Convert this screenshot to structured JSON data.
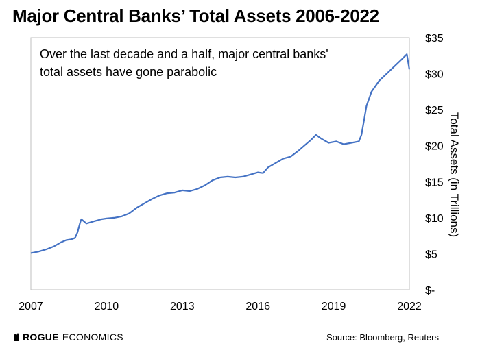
{
  "header": {
    "title": "Major Central Banks’ Total Assets 2006-2022"
  },
  "annotation": {
    "line1": "Over the last decade and a half, major central banks'",
    "line2": "total assets have gone parabolic"
  },
  "footer": {
    "logo_brand": "ROGUE",
    "logo_brand2": "ECONOMICS",
    "source": "Source: Bloomberg, Reuters"
  },
  "chart_data": {
    "type": "line",
    "title": "Major Central Banks’ Total Assets 2006-2022",
    "ylabel": "Total Assets (in Trillions)",
    "xlabel": "",
    "xlim": [
      2007,
      2022
    ],
    "ylim": [
      0,
      35
    ],
    "x_ticks": [
      "2007",
      "2010",
      "2013",
      "2016",
      "2019",
      "2022"
    ],
    "x_tick_values": [
      2007,
      2010,
      2013,
      2016,
      2019,
      2022
    ],
    "y_ticks": [
      "$-",
      "$5",
      "$10",
      "$15",
      "$20",
      "$25",
      "$30",
      "$35"
    ],
    "y_tick_values": [
      0,
      5,
      10,
      15,
      20,
      25,
      30,
      35
    ],
    "grid": false,
    "legend": "none",
    "colors": {
      "line": "#4472C4",
      "frame": "#bfbfbf"
    },
    "series": [
      {
        "x": [
          2007.0,
          2007.3,
          2007.6,
          2007.9,
          2008.2,
          2008.4,
          2008.6,
          2008.75,
          2008.85,
          2008.95,
          2009.0,
          2009.1,
          2009.2,
          2009.5,
          2009.8,
          2010.0,
          2010.3,
          2010.6,
          2010.9,
          2011.2,
          2011.5,
          2011.8,
          2012.1,
          2012.4,
          2012.7,
          2013.0,
          2013.3,
          2013.6,
          2013.9,
          2014.2,
          2014.5,
          2014.8,
          2015.1,
          2015.4,
          2015.7,
          2016.0,
          2016.2,
          2016.4,
          2016.7,
          2017.0,
          2017.3,
          2017.6,
          2017.9,
          2018.1,
          2018.3,
          2018.5,
          2018.8,
          2019.1,
          2019.4,
          2019.7,
          2020.0,
          2020.1,
          2020.2,
          2020.3,
          2020.5,
          2020.8,
          2021.1,
          2021.4,
          2021.7,
          2021.9,
          2022.0
        ],
        "y": [
          5.1,
          5.3,
          5.6,
          6.0,
          6.6,
          6.9,
          7.0,
          7.2,
          8.0,
          9.3,
          9.8,
          9.5,
          9.2,
          9.5,
          9.8,
          9.9,
          10.0,
          10.2,
          10.6,
          11.4,
          12.0,
          12.6,
          13.1,
          13.4,
          13.5,
          13.8,
          13.7,
          14.0,
          14.5,
          15.2,
          15.6,
          15.7,
          15.6,
          15.7,
          16.0,
          16.3,
          16.2,
          17.0,
          17.6,
          18.2,
          18.5,
          19.3,
          20.2,
          20.8,
          21.5,
          21.0,
          20.4,
          20.6,
          20.2,
          20.4,
          20.6,
          21.5,
          23.5,
          25.5,
          27.5,
          29.0,
          30.0,
          31.0,
          32.0,
          32.7,
          30.6
        ]
      }
    ]
  }
}
